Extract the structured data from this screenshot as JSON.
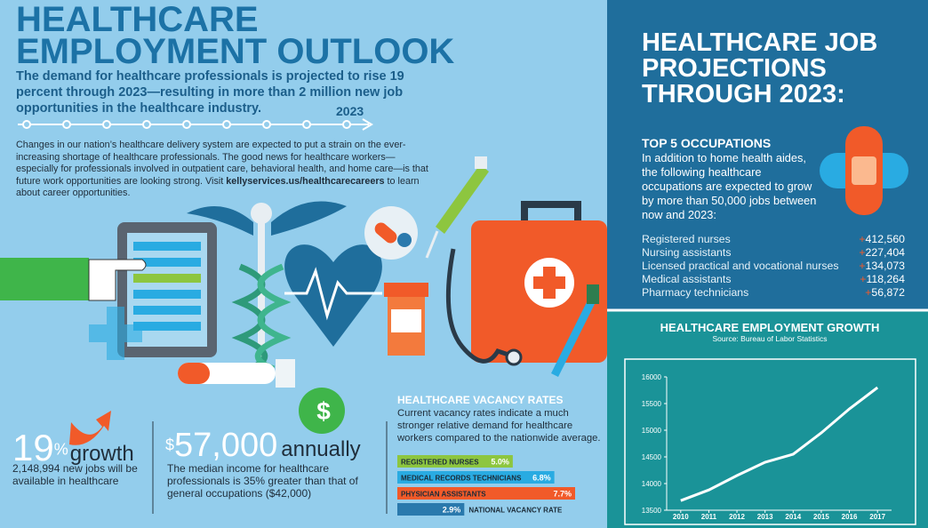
{
  "header": {
    "title": "HEALTHCARE EMPLOYMENT OUTLOOK",
    "subtitle": "The demand for healthcare professionals is projected to rise 19 percent through 2023—resulting in more than 2 million new job opportunities in the healthcare industry.",
    "timeline_label": "2023"
  },
  "intro": {
    "text_before": "Changes in our nation’s healthcare delivery system are expected to put a strain on the ever-increasing shortage of healthcare professionals. The good news for healthcare workers—especially for professionals involved in outpatient care, behavioral health, and home care—is that future work opportunities are looking strong. Visit ",
    "link": "kellyservices.us/healthcarecareers",
    "text_after": " to learn about career opportunities."
  },
  "growth_stat": {
    "number": "19",
    "unit": "%",
    "word": "growth",
    "text": "2,148,994 new jobs will be available in healthcare"
  },
  "income_stat": {
    "unit": "$",
    "number": "57,000",
    "word": "annually",
    "text": "The median income for healthcare professionals is 35% greater than that of general occupations ($42,000)",
    "icon": "$"
  },
  "vacancy": {
    "title": "HEALTHCARE VACANCY RATES",
    "text": "Current vacancy rates indicate a much stronger relative demand for healthcare workers compared to the nationwide average."
  },
  "projections": {
    "title": "HEALTHCARE JOB PROJECTIONS THROUGH 2023:",
    "subtitle": "TOP 5 OCCUPATIONS",
    "text": "In addition to home health aides, the following healthcare occupations are expected to grow by more than 50,000 jobs between now and 2023:",
    "items": [
      {
        "name": "Registered nurses",
        "sign": "+",
        "value": "412,560"
      },
      {
        "name": "Nursing assistants",
        "sign": "+",
        "value": "227,404"
      },
      {
        "name": "Licensed practical and vocational nurses",
        "sign": "+",
        "value": "134,073"
      },
      {
        "name": "Medical assistants",
        "sign": "+",
        "value": "118,264"
      },
      {
        "name": "Pharmacy technicians",
        "sign": "+",
        "value": "56,872"
      }
    ]
  },
  "chart_data": [
    {
      "type": "hbar",
      "categories": [
        "REGISTERED NURSES",
        "MEDICAL RECORDS TECHNICIANS",
        "PHYSICIAN ASSISTANTS",
        "NATIONAL VACANCY RATE"
      ],
      "values": [
        5.0,
        6.8,
        7.7,
        2.9
      ],
      "value_labels": [
        "5.0%",
        "6.8%",
        "7.7%",
        "2.9%"
      ],
      "colors": [
        "#8dc63f",
        "#29abe2",
        "#f15a29",
        "#2a79ad"
      ],
      "xlim": [
        0,
        7.7
      ]
    },
    {
      "type": "line",
      "title": "HEALTHCARE EMPLOYMENT GROWTH",
      "subtitle": "Source: Bureau of Labor Statistics",
      "x": [
        2010,
        2011,
        2012,
        2013,
        2014,
        2015,
        2016,
        2017
      ],
      "values": [
        13680,
        13880,
        14150,
        14400,
        14550,
        14950,
        15400,
        15800
      ],
      "color": "#ffffff",
      "xlim": [
        2009.5,
        2017.5
      ],
      "ylim": [
        13500,
        16000
      ],
      "xticks": [
        2010,
        2011,
        2012,
        2013,
        2014,
        2015,
        2016,
        2017
      ],
      "yticks": [
        13500,
        14000,
        14500,
        15000,
        15500,
        16000
      ]
    }
  ]
}
